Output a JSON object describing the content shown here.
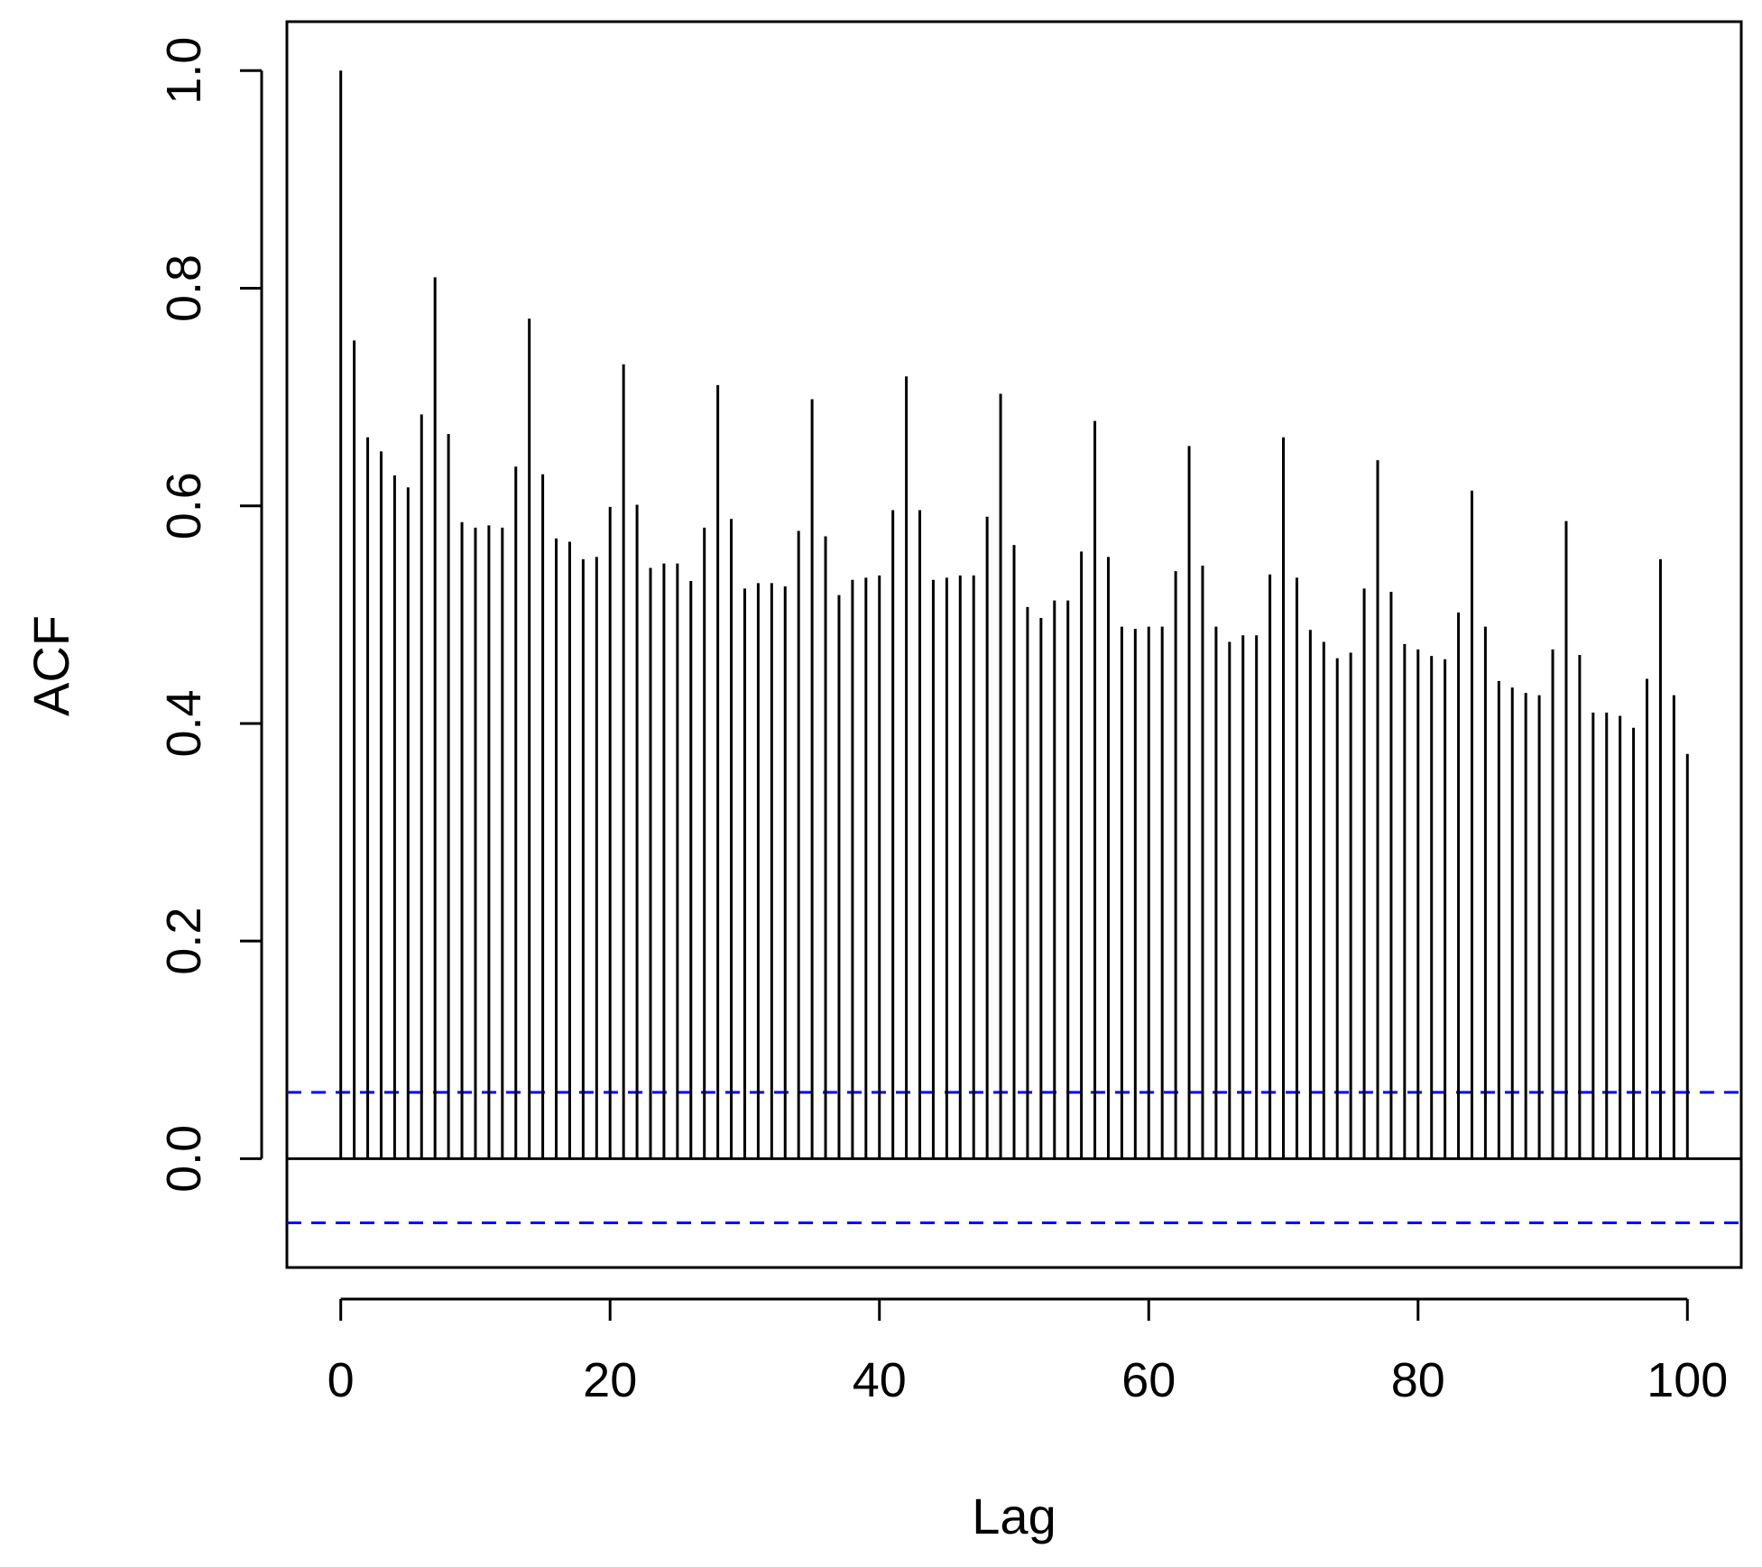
{
  "chart_data": {
    "type": "bar",
    "title": "",
    "xlabel": "Lag",
    "ylabel": "ACF",
    "xlim": [
      -4,
      104
    ],
    "ylim": [
      -0.1,
      1.045
    ],
    "x_ticks": [
      0,
      20,
      40,
      60,
      80,
      100
    ],
    "y_ticks": [
      0.0,
      0.2,
      0.4,
      0.6,
      0.8,
      1.0
    ],
    "x_tick_labels": [
      "0",
      "20",
      "40",
      "60",
      "80",
      "100"
    ],
    "y_tick_labels": [
      "0.0",
      "0.2",
      "0.4",
      "0.6",
      "0.8",
      "1.0"
    ],
    "grid": false,
    "legend": "none",
    "confidence_bounds": [
      0.061,
      -0.059
    ],
    "colors": {
      "bars": "#000000",
      "bounds": "#0000ff",
      "zero_line": "#000000"
    },
    "lags": [
      0,
      1,
      2,
      3,
      4,
      5,
      6,
      7,
      8,
      9,
      10,
      11,
      12,
      13,
      14,
      15,
      16,
      17,
      18,
      19,
      20,
      21,
      22,
      23,
      24,
      25,
      26,
      27,
      28,
      29,
      30,
      31,
      32,
      33,
      34,
      35,
      36,
      37,
      38,
      39,
      40,
      41,
      42,
      43,
      44,
      45,
      46,
      47,
      48,
      49,
      50,
      51,
      52,
      53,
      54,
      55,
      56,
      57,
      58,
      59,
      60,
      61,
      62,
      63,
      64,
      65,
      66,
      67,
      68,
      69,
      70,
      71,
      72,
      73,
      74,
      75,
      76,
      77,
      78,
      79,
      80,
      81,
      82,
      83,
      84,
      85,
      86,
      87,
      88,
      89,
      90,
      91,
      92,
      93,
      94,
      95,
      96,
      97,
      98,
      99,
      100
    ],
    "values": [
      1.0,
      0.752,
      0.663,
      0.65,
      0.628,
      0.617,
      0.684,
      0.81,
      0.666,
      0.585,
      0.58,
      0.582,
      0.58,
      0.636,
      0.772,
      0.629,
      0.57,
      0.567,
      0.551,
      0.553,
      0.599,
      0.73,
      0.601,
      0.543,
      0.547,
      0.547,
      0.531,
      0.58,
      0.711,
      0.588,
      0.524,
      0.529,
      0.529,
      0.526,
      0.577,
      0.698,
      0.572,
      0.518,
      0.532,
      0.534,
      0.536,
      0.596,
      0.719,
      0.596,
      0.532,
      0.534,
      0.536,
      0.536,
      0.59,
      0.703,
      0.564,
      0.507,
      0.497,
      0.513,
      0.513,
      0.558,
      0.678,
      0.553,
      0.489,
      0.487,
      0.489,
      0.489,
      0.54,
      0.655,
      0.545,
      0.489,
      0.475,
      0.481,
      0.481,
      0.537,
      0.663,
      0.534,
      0.486,
      0.475,
      0.46,
      0.465,
      0.524,
      0.642,
      0.521,
      0.473,
      0.468,
      0.462,
      0.459,
      0.502,
      0.614,
      0.489,
      0.439,
      0.433,
      0.428,
      0.426,
      0.468,
      0.586,
      0.463,
      0.41,
      0.41,
      0.407,
      0.396,
      0.441,
      0.551,
      0.426,
      0.372
    ]
  }
}
